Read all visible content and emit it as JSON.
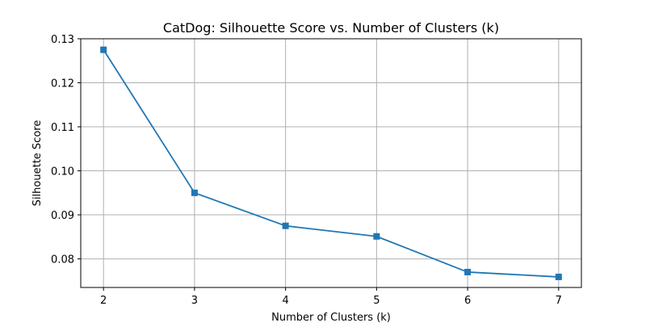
{
  "chart_data": {
    "type": "line",
    "title": "CatDog: Silhouette Score vs. Number of Clusters (k)",
    "xlabel": "Number of Clusters (k)",
    "ylabel": "Silhouette Score",
    "x": [
      2,
      3,
      4,
      5,
      6,
      7
    ],
    "series": [
      {
        "values": [
          0.1275,
          0.095,
          0.0875,
          0.0851,
          0.077,
          0.0759
        ],
        "color": "#1f77b4",
        "marker": "square"
      }
    ],
    "xlim": [
      1.75,
      7.25
    ],
    "ylim": [
      0.0735,
      0.13
    ],
    "xticks": [
      "2",
      "3",
      "4",
      "5",
      "6",
      "7"
    ],
    "yticks": [
      "0.08",
      "0.09",
      "0.10",
      "0.11",
      "0.12",
      "0.13"
    ],
    "grid": true
  }
}
